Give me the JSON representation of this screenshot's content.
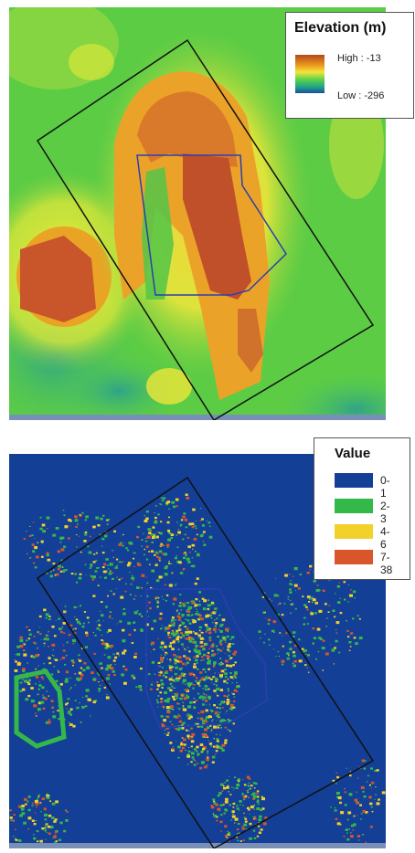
{
  "elevation_legend": {
    "title": "Elevation (m)",
    "high_label": "High : -13",
    "low_label": "Low : -296",
    "ramp_colors": [
      "#b24a1c",
      "#e9911e",
      "#f3e43a",
      "#58d24b",
      "#1f9f8c",
      "#1b4f9c"
    ]
  },
  "value_legend": {
    "title": "Value",
    "classes": [
      {
        "label": "0-1",
        "color": "#143f96"
      },
      {
        "label": "2-3",
        "color": "#35b84a"
      },
      {
        "label": "4-6",
        "color": "#f2d22a"
      },
      {
        "label": "7-38",
        "color": "#d9552a"
      }
    ]
  },
  "colors": {
    "boundary_outer": "#111111",
    "boundary_inner": "#2a3fb0"
  }
}
